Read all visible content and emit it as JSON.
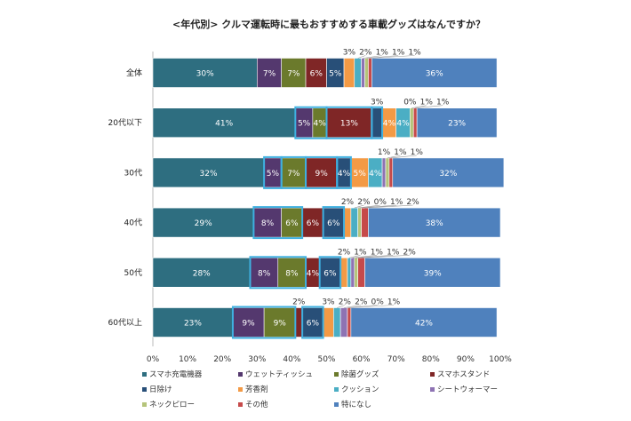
{
  "chart_data": {
    "type": "bar",
    "orientation": "horizontal-stacked",
    "title": "<年代別> クルマ運転時に最もおすすめする車載グッズはなんですか？",
    "xlabel": "",
    "ylabel": "",
    "xlim": [
      0,
      100
    ],
    "x_ticks": [
      "0%",
      "10%",
      "20%",
      "30%",
      "40%",
      "50%",
      "60%",
      "70%",
      "80%",
      "90%",
      "100%"
    ],
    "categories": [
      "全体",
      "20代以下",
      "30代",
      "40代",
      "50代",
      "60代以上"
    ],
    "series": [
      {
        "name": "スマホ充電機器",
        "color": "#2e6e80",
        "values": [
          30,
          41,
          32,
          29,
          28,
          23
        ]
      },
      {
        "name": "ウェットティッシュ",
        "color": "#54386e",
        "values": [
          7,
          5,
          5,
          8,
          8,
          9
        ]
      },
      {
        "name": "除菌グッズ",
        "color": "#6b7a2c",
        "values": [
          7,
          4,
          7,
          6,
          8,
          9
        ]
      },
      {
        "name": "スマホスタンド",
        "color": "#7f2626",
        "values": [
          6,
          13,
          9,
          6,
          4,
          2
        ]
      },
      {
        "name": "日除け",
        "color": "#284f78",
        "values": [
          5,
          3,
          4,
          6,
          6,
          6
        ]
      },
      {
        "name": "芳香剤",
        "color": "#f39a45",
        "values": [
          3,
          4,
          5,
          2,
          2,
          3
        ]
      },
      {
        "name": "クッション",
        "color": "#4baec4",
        "values": [
          2,
          4,
          4,
          2,
          1,
          2
        ]
      },
      {
        "name": "シートウォーマー",
        "color": "#8e73b3",
        "values": [
          1,
          0,
          1,
          0,
          1,
          2
        ]
      },
      {
        "name": "ネックピロー",
        "color": "#b5c47a",
        "values": [
          1,
          1,
          1,
          1,
          1,
          0
        ]
      },
      {
        "name": "その他",
        "color": "#c64a4a",
        "values": [
          1,
          1,
          1,
          2,
          2,
          1
        ]
      },
      {
        "name": "特になし",
        "color": "#4f81bd",
        "values": [
          36,
          23,
          32,
          38,
          39,
          42
        ]
      }
    ],
    "legend": "bottom",
    "highlight_color": "#3fb0e0",
    "highlights": [
      [
        1,
        [
          1,
          2
        ]
      ],
      [
        1,
        [
          3,
          3
        ]
      ],
      [
        1,
        [
          4,
          4
        ]
      ],
      [
        2,
        [
          1,
          1
        ]
      ],
      [
        2,
        [
          2,
          2
        ]
      ],
      [
        2,
        [
          3,
          3
        ]
      ],
      [
        2,
        [
          4,
          4
        ]
      ],
      [
        3,
        [
          1,
          2
        ]
      ],
      [
        3,
        [
          4,
          4
        ]
      ],
      [
        4,
        [
          1,
          2
        ]
      ],
      [
        4,
        [
          4,
          4
        ]
      ],
      [
        5,
        [
          1,
          2
        ]
      ],
      [
        5,
        [
          4,
          4
        ]
      ]
    ]
  }
}
